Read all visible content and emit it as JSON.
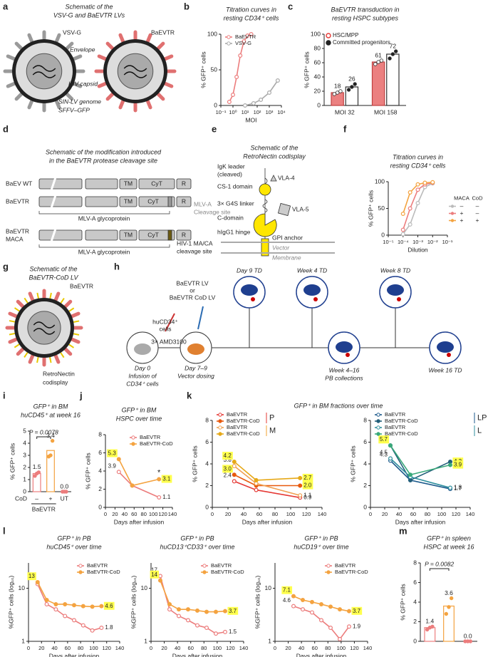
{
  "panel_labels": [
    "a",
    "b",
    "c",
    "d",
    "e",
    "f",
    "g",
    "h",
    "i",
    "j",
    "k",
    "l",
    "m"
  ],
  "diagrams": {
    "a": {
      "title": [
        "Schematic of the",
        "VSV-G and BaEVTR LVs"
      ],
      "labels": [
        "VSV-G",
        "BaEVTR",
        "Envelope",
        "HIV capsid",
        "SIN-LV genome",
        "SFFV–GFP"
      ]
    },
    "d": {
      "title": [
        "Schematic of the modification introduced",
        "in the BaEVTR protease cleavage site"
      ],
      "rows": [
        "BaEV WT",
        "BaEVTR",
        "BaEVTR",
        "MACA"
      ],
      "domains": [
        "TM",
        "CyT",
        "R"
      ],
      "labels": [
        "MLV-A glycoprotein",
        "MLV-A",
        "Cleavage site",
        "MLV-A glycoprotein",
        "HIV-1 MA/CA",
        "cleavage site"
      ]
    },
    "e": {
      "title": [
        "Schematic of the",
        "RetroNectin codisplay"
      ],
      "labels": [
        "IgK leader",
        "(cleaved)",
        "VLA-4",
        "CS-1 domain",
        "3× G4S linker",
        "VLA-5",
        "C-domain",
        "hIgG1 hinge",
        "GPI anchor",
        "Vector",
        "Membrane"
      ]
    },
    "g": {
      "title": [
        "Schematic of the",
        "BaEVTR-CoD LV"
      ],
      "labels": [
        "BaEVTR",
        "RetroNectin",
        "codisplay"
      ]
    },
    "h": {
      "labels": [
        "huCD34⁺",
        "cells",
        "BaEVTR LV",
        "or",
        "BaEVTR CoD LV",
        "3× AMD3100",
        "Day 0",
        "Infusion of",
        "CD34⁺ cells",
        "Day 7–9",
        "Vector dosing",
        "Day 9 TD",
        "Week 4 TD",
        "Week 8 TD",
        "Week 4–16",
        "PB collections",
        "Week 16 TD"
      ]
    }
  },
  "chart_data": [
    {
      "type": "line",
      "title": [
        "Titration curves in",
        "resting CD34⁺ cells"
      ],
      "xlabel": "MOI",
      "ylabel": "% GFP⁺ cells",
      "xlog": true,
      "xlim": [
        0.1,
        10000
      ],
      "xticks": [
        {
          "value": 0.1,
          "label": "10⁻¹"
        },
        {
          "value": 1,
          "label": "10⁰"
        },
        {
          "value": 10,
          "label": "10¹"
        },
        {
          "value": 100,
          "label": "10²"
        },
        {
          "value": 1000,
          "label": "10³"
        },
        {
          "value": 10000,
          "label": "10⁴"
        }
      ],
      "ylim": [
        0,
        100
      ],
      "yticks": [
        0,
        50,
        100
      ],
      "legend": "top-left",
      "series": [
        {
          "name": "BaEVTR",
          "color": "#ec7d7d",
          "x": [
            0.5,
            1,
            2,
            4,
            8,
            16,
            32
          ],
          "values": [
            5,
            15,
            40,
            70,
            90,
            98,
            100
          ]
        },
        {
          "name": "VSV-G",
          "color": "#aaaaaa",
          "x": [
            10,
            50,
            200,
            1000,
            5000
          ],
          "values": [
            0,
            3,
            8,
            18,
            35
          ]
        }
      ]
    },
    {
      "type": "bar",
      "title": [
        "BaEVTR transduction in",
        "resting HSPC subtypes"
      ],
      "ylabel": "% GFP⁺ cells",
      "categories": [
        "MOI 32",
        "MOI 158"
      ],
      "ylim": [
        0,
        100
      ],
      "yticks": [
        0,
        20,
        40,
        60,
        80,
        100
      ],
      "legend": "top-left",
      "series": [
        {
          "name": "HSC/MPP",
          "color": "#e86a6a",
          "values": [
            18,
            61
          ],
          "points": [
            [
              16,
              18,
              20
            ],
            [
              58,
              61,
              63
            ]
          ]
        },
        {
          "name": "Committed progenitors",
          "color": "#ffffff",
          "values": [
            26,
            72
          ],
          "points": [
            [
              22,
              26,
              30
            ],
            [
              66,
              72,
              76
            ]
          ]
        }
      ]
    },
    {
      "type": "line",
      "title": [
        "Titration curves in",
        "resting CD34⁺ cells"
      ],
      "xlabel": "Dilution",
      "ylabel": "% GFP⁺ cells",
      "xlog": true,
      "xlim": [
        1e-05,
        0.1
      ],
      "xticks": [
        {
          "value": 1e-05,
          "label": "10⁻⁵"
        },
        {
          "value": 0.0001,
          "label": "10⁻⁴"
        },
        {
          "value": 0.001,
          "label": "10⁻³"
        },
        {
          "value": 0.01,
          "label": "10⁻²"
        },
        {
          "value": 0.1,
          "label": "10⁻¹"
        }
      ],
      "ylim": [
        0,
        100
      ],
      "yticks": [
        0,
        50,
        100
      ],
      "legend": "right",
      "legend_headers": [
        "MACA",
        "CoD"
      ],
      "series": [
        {
          "maca": "–",
          "cod": "–",
          "color": "#bbbbbb",
          "x": [
            0.0001,
            0.0003,
            0.001,
            0.003,
            0.01
          ],
          "values": [
            2,
            20,
            60,
            90,
            97
          ]
        },
        {
          "maca": "+",
          "cod": "–",
          "color": "#ec7d7d",
          "x": [
            0.0001,
            0.0003,
            0.001,
            0.003,
            0.01
          ],
          "values": [
            10,
            50,
            85,
            95,
            98
          ]
        },
        {
          "maca": "+",
          "cod": "+",
          "color": "#f4a340",
          "x": [
            0.0001,
            0.0003,
            0.001,
            0.003,
            0.01
          ],
          "values": [
            40,
            80,
            95,
            98,
            99
          ]
        }
      ]
    },
    {
      "type": "bar",
      "title": [
        "GFP⁺ in BM",
        "huCD45⁺ at week 16"
      ],
      "ylabel": "% GFP⁺ cells",
      "categories": [
        "–",
        "+",
        "UT"
      ],
      "row_label": "CoD",
      "group_label": "BaEVTR",
      "ylim": [
        0,
        5
      ],
      "yticks": [
        0,
        1,
        2,
        3,
        4,
        5
      ],
      "values": [
        1.5,
        3.4,
        0.0
      ],
      "value_labels": [
        "1.5",
        "3.4",
        "0.0"
      ],
      "colors": [
        "#ec7d7d",
        "#f4a340",
        "#ec7d7d"
      ],
      "points": [
        [
          1.3,
          1.5,
          1.6
        ],
        [
          2.9,
          3.0,
          4.2
        ],
        [
          0,
          0,
          0
        ]
      ],
      "annotation": "P = 0.0078"
    },
    {
      "type": "line",
      "title": [
        "GFP⁺ in BM",
        "HSPC over time"
      ],
      "xlabel": "Days after infusion",
      "ylabel": "% GFP⁺ cells",
      "xlim": [
        0,
        140
      ],
      "xticks": [
        0,
        20,
        40,
        60,
        80,
        100,
        120,
        140
      ],
      "ylim": [
        0,
        8
      ],
      "yticks": [
        0,
        2,
        4,
        6,
        8
      ],
      "legend": "top-right",
      "annotation": "*",
      "x": [
        28,
        56,
        112
      ],
      "series": [
        {
          "name": "BaEVTR",
          "color": "#ec7d7d",
          "values": [
            3.9,
            2.4,
            1.1
          ],
          "value_labels": [
            "3.9",
            null,
            "1.1"
          ]
        },
        {
          "name": "BaEVTR-CoD",
          "color": "#f4a340",
          "values": [
            5.3,
            2.4,
            3.1
          ],
          "value_labels": [
            "5.3",
            null,
            "3.1"
          ],
          "highlight": "#ffff4d"
        }
      ]
    },
    {
      "type": "line",
      "title": "GFP⁺ in BM fractions over time",
      "xlabel": "Days after infusion",
      "ylabel": "% GFP⁺ cells",
      "xlim": [
        0,
        140
      ],
      "xticks": [
        0,
        20,
        40,
        60,
        80,
        100,
        120,
        140
      ],
      "ylim": [
        0,
        8
      ],
      "yticks": [
        0,
        2,
        4,
        6,
        8
      ],
      "legend": "top-left",
      "legend_groups": [
        {
          "label": "P",
          "color": "#e53935"
        },
        {
          "label": "M",
          "color": "#f0a030"
        }
      ],
      "x": [
        28,
        56,
        112
      ],
      "series": [
        {
          "name": "BaEVTR",
          "color": "#e53935",
          "group": 0,
          "values": [
            2.4,
            1.6,
            0.9
          ],
          "value_labels": [
            "2.4",
            null,
            "0.9"
          ]
        },
        {
          "name": "BaEVTR-CoD",
          "color": "#e8590c",
          "group": 0,
          "values": [
            3.0,
            2.0,
            2.0
          ],
          "value_labels": [
            "3.0",
            null,
            "2.0"
          ],
          "highlight": "#ffff4d"
        },
        {
          "name": "BaEVTR",
          "color": "#f0a050",
          "group": 1,
          "values": [
            3.8,
            2.2,
            1.1
          ],
          "value_labels": [
            "3.8",
            null,
            "1.1"
          ]
        },
        {
          "name": "BaEVTR-CoD",
          "color": "#e6a817",
          "group": 1,
          "values": [
            4.2,
            2.5,
            2.7
          ],
          "value_labels": [
            "4.2",
            null,
            "2.7"
          ],
          "highlight": "#ffff4d"
        }
      ]
    },
    {
      "type": "line",
      "xlabel": "Days after infusion",
      "ylabel": "% GFP⁺ cells",
      "xlim": [
        0,
        140
      ],
      "xticks": [
        0,
        20,
        40,
        60,
        80,
        100,
        120,
        140
      ],
      "ylim": [
        0,
        8
      ],
      "yticks": [
        0,
        2,
        4,
        6,
        8
      ],
      "legend": "top-left",
      "legend_groups": [
        {
          "label": "LP",
          "color": "#1c5a8c"
        },
        {
          "label": "L",
          "color": "#2f8f9d"
        }
      ],
      "x": [
        28,
        56,
        112
      ],
      "series": [
        {
          "name": "BaEVTR",
          "color": "#1c5a8c",
          "group": 0,
          "values": [
            4.3,
            2.5,
            1.7
          ],
          "value_labels": [
            "4.3",
            null,
            "1.7"
          ]
        },
        {
          "name": "BaEVTR-CoD",
          "color": "#235f7a",
          "group": 0,
          "values": [
            5.7,
            2.5,
            4.2
          ],
          "value_labels": [
            "5.7",
            null,
            "4.2"
          ],
          "highlight": "#ffff4d"
        },
        {
          "name": "BaEVTR",
          "color": "#2f8f9d",
          "group": 1,
          "values": [
            4.5,
            2.8,
            1.8
          ],
          "value_labels": [
            "4.5",
            null,
            "1.8"
          ]
        },
        {
          "name": "BaEVTR-CoD",
          "color": "#3aa97a",
          "group": 1,
          "values": [
            5.7,
            3.0,
            3.9
          ],
          "value_labels": [
            "5.7",
            null,
            "3.9"
          ],
          "highlight": "#ffff4d"
        }
      ]
    },
    {
      "type": "line",
      "title": [
        "GFP⁺ in PB",
        "huCD45⁺ over time"
      ],
      "xlabel": "Days after infusion",
      "ylabel": "%GFP⁺ cells (log₁₀)",
      "ylog": true,
      "xlim": [
        0,
        140
      ],
      "xticks": [
        0,
        20,
        40,
        60,
        80,
        100,
        120,
        140
      ],
      "ylim": [
        1,
        30
      ],
      "yticks": [
        1,
        10
      ],
      "legend": "top-right",
      "x": [
        14,
        28,
        42,
        56,
        70,
        84,
        98,
        112
      ],
      "series": [
        {
          "name": "BaEVTR",
          "color": "#ec7d7d",
          "values": [
            12,
            5,
            4,
            3,
            2.5,
            2,
            1.6,
            1.8
          ],
          "value_labels": [
            "12",
            null,
            null,
            null,
            null,
            null,
            null,
            "1.8"
          ]
        },
        {
          "name": "BaEVTR-CoD",
          "color": "#f4a340",
          "values": [
            13,
            6,
            5,
            5,
            4.8,
            4.6,
            4.5,
            4.6
          ],
          "value_labels": [
            "13",
            null,
            null,
            null,
            null,
            null,
            null,
            "4.6"
          ],
          "highlight": "#ffff4d"
        }
      ]
    },
    {
      "type": "line",
      "title": [
        "GFP⁺ in PB",
        "huCD13⁺CD33⁺ over time"
      ],
      "xlabel": "Days after infusion",
      "ylabel": "%GFP⁺ cells (log₁₀)",
      "ylog": true,
      "xlim": [
        0,
        140
      ],
      "xticks": [
        0,
        20,
        40,
        60,
        80,
        100,
        120,
        140
      ],
      "ylim": [
        1,
        30
      ],
      "yticks": [
        1,
        10
      ],
      "legend": "top-right",
      "x": [
        14,
        28,
        42,
        56,
        70,
        84,
        98,
        112
      ],
      "series": [
        {
          "name": "BaEVTR",
          "color": "#ec7d7d",
          "values": [
            17,
            4,
            3,
            2.5,
            2,
            1.8,
            1.4,
            1.5
          ],
          "value_labels": [
            "17",
            null,
            null,
            null,
            null,
            null,
            null,
            "1.5"
          ]
        },
        {
          "name": "BaEVTR-CoD",
          "color": "#f4a340",
          "values": [
            14,
            5,
            4,
            4,
            3.8,
            3.6,
            3.6,
            3.7
          ],
          "value_labels": [
            "14",
            null,
            null,
            null,
            null,
            null,
            null,
            "3.7"
          ],
          "highlight": "#ffff4d"
        }
      ]
    },
    {
      "type": "line",
      "title": [
        "GFP⁺ in PB",
        "huCD19⁺ over time"
      ],
      "xlabel": "Days after infusion",
      "ylabel": "%GFP⁺ cells (log₁₀)",
      "ylog": true,
      "xlim": [
        0,
        140
      ],
      "xticks": [
        0,
        20,
        40,
        60,
        80,
        100,
        120,
        140
      ],
      "ylim": [
        1,
        30
      ],
      "yticks": [
        1,
        10
      ],
      "legend": "top-right",
      "x": [
        28,
        42,
        56,
        70,
        84,
        98,
        112
      ],
      "series": [
        {
          "name": "BaEVTR",
          "color": "#ec7d7d",
          "values": [
            4.6,
            4,
            3.5,
            2.5,
            1.8,
            1.1,
            1.9
          ],
          "value_labels": [
            "4.6",
            null,
            null,
            null,
            null,
            null,
            "1.9"
          ]
        },
        {
          "name": "BaEVTR-CoD",
          "color": "#f4a340",
          "values": [
            7.1,
            6,
            5.5,
            5,
            4.5,
            4,
            3.7
          ],
          "value_labels": [
            "7.1",
            null,
            null,
            null,
            null,
            null,
            "3.7"
          ],
          "highlight": "#ffff4d"
        }
      ]
    },
    {
      "type": "bar",
      "title": [
        "GFP⁺ in spleen",
        "HSPC at week 16"
      ],
      "ylabel": "% GFP⁺ cells",
      "ylim": [
        0,
        8
      ],
      "yticks": [
        0,
        2,
        4,
        6,
        8
      ],
      "values": [
        1.4,
        3.6,
        0.0
      ],
      "value_labels": [
        "1.4",
        "3.6",
        "0.0"
      ],
      "colors": [
        "#ec7d7d",
        "#f4a340",
        "#ec7d7d"
      ],
      "points": [
        [
          1.2,
          1.4,
          1.5
        ],
        [
          2.8,
          3.5,
          4.4
        ],
        [
          0,
          0,
          0
        ]
      ],
      "annotation": "P = 0.0082"
    }
  ]
}
